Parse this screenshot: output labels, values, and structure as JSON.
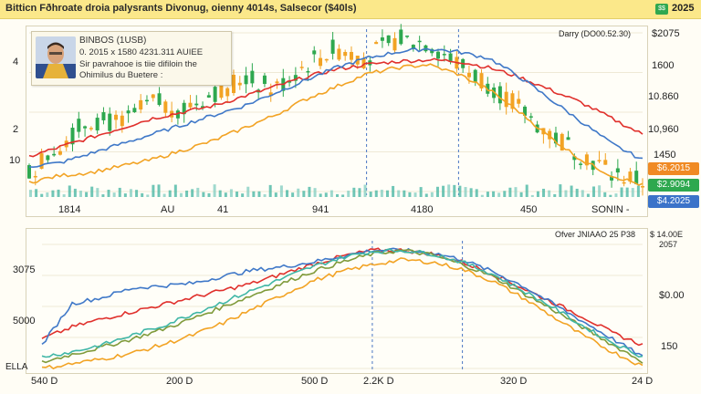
{
  "header": {
    "title": "Bitticn Fðhroate droia palysrants Divonug, oienny 4014s, Salsecor ($40ls)",
    "badge": "$$",
    "year": "2025"
  },
  "annotation": {
    "lines": [
      "BINBOS (1USB)",
      "0. 2015 x 1580 4231.311 AUIEE",
      "Sir pavrahooe is tiie difiloin the",
      "Ohimilus du Buetere :"
    ]
  },
  "top_panel": {
    "left_labels": [
      "4",
      "2",
      "10"
    ],
    "right_labels": [
      "Darry (DO00.52.30)",
      "$2075",
      "1600",
      "10.860",
      "10,960",
      "1450"
    ],
    "x_labels": [
      "1814",
      "AU",
      "41",
      "941",
      "4180",
      "450",
      "SON!N -"
    ],
    "tags": [
      {
        "text": "$6.2015",
        "color": "#f08a24"
      },
      {
        "text": "$2.9094",
        "color": "#2ea84f"
      },
      {
        "text": "$4.2025",
        "color": "#3b73c9"
      }
    ]
  },
  "bottom_panel": {
    "left_labels": [
      "3075",
      "5000",
      "ELLA"
    ],
    "right_labels": [
      "Ofver JNIAAO 25 P38",
      "$ 14.00E",
      "2057",
      "$0.00",
      "150"
    ],
    "x_labels": [
      "540 D",
      "200 D",
      "500 D",
      "2.2K D",
      "320 D",
      "24 D"
    ]
  },
  "colors": {
    "red": "#e0302c",
    "blue": "#3f78c8",
    "green": "#2ea84f",
    "orange": "#f2a324",
    "teal": "#3fb6a6",
    "olive": "#7f9a3a",
    "vline": "#4a77c4"
  },
  "chart_data": [
    {
      "type": "line",
      "description_kind": "candlestick with moving averages and volume",
      "x": [
        0,
        1,
        2,
        3,
        4,
        5,
        6,
        7,
        8,
        9,
        10,
        11,
        12,
        13,
        14,
        15,
        16,
        17,
        18,
        19,
        20
      ],
      "series": [
        {
          "color": "red",
          "values": [
            1.1,
            1.4,
            1.7,
            2.0,
            2.3,
            2.5,
            2.7,
            3.0,
            3.3,
            3.6,
            3.85,
            4.0,
            4.1,
            4.15,
            4.1,
            3.9,
            3.6,
            3.2,
            2.8,
            2.3,
            1.8
          ]
        },
        {
          "color": "blue",
          "values": [
            0.8,
            0.9,
            1.2,
            1.5,
            1.8,
            2.1,
            2.4,
            2.7,
            3.1,
            3.5,
            3.9,
            4.2,
            4.4,
            4.5,
            4.4,
            4.2,
            3.6,
            2.9,
            2.2,
            1.5,
            1.0
          ]
        },
        {
          "color": "orange",
          "values": [
            0.3,
            0.5,
            0.6,
            0.8,
            1.0,
            1.3,
            1.6,
            2.0,
            2.4,
            2.9,
            3.3,
            3.7,
            3.9,
            4.0,
            3.7,
            3.2,
            2.5,
            1.7,
            1.0,
            0.5,
            0.2
          ]
        },
        {
          "color": "green",
          "values": [
            0.6,
            1.5,
            2.3,
            2.1,
            2.8,
            2.6,
            3.1,
            3.6,
            3.2,
            4.0,
            4.5,
            4.2,
            4.8,
            4.7,
            4.0,
            3.4,
            2.6,
            1.8,
            1.2,
            0.6,
            0.3
          ]
        }
      ],
      "markers": [
        11,
        14
      ]
    },
    {
      "type": "line",
      "x": [
        0,
        1,
        2,
        3,
        4,
        5,
        6,
        7,
        8,
        9,
        10,
        11,
        12,
        13,
        14,
        15,
        16,
        17,
        18,
        19,
        20
      ],
      "series": [
        {
          "color": "red",
          "values": [
            0.25,
            0.35,
            0.42,
            0.48,
            0.54,
            0.6,
            0.66,
            0.72,
            0.8,
            0.88,
            0.95,
            1.0,
            1.0,
            0.97,
            0.9,
            0.8,
            0.68,
            0.56,
            0.44,
            0.3,
            0.2
          ]
        },
        {
          "color": "blue",
          "values": [
            0.2,
            0.55,
            0.6,
            0.68,
            0.7,
            0.72,
            0.78,
            0.83,
            0.86,
            0.9,
            0.95,
            1.0,
            1.0,
            0.98,
            0.92,
            0.82,
            0.7,
            0.55,
            0.4,
            0.25,
            0.1
          ]
        },
        {
          "color": "olive",
          "values": [
            0.05,
            0.12,
            0.18,
            0.25,
            0.33,
            0.42,
            0.52,
            0.62,
            0.72,
            0.82,
            0.9,
            0.97,
            1.0,
            0.96,
            0.88,
            0.78,
            0.64,
            0.5,
            0.35,
            0.2,
            0.06
          ]
        },
        {
          "color": "orange",
          "values": [
            0.0,
            0.04,
            0.08,
            0.13,
            0.2,
            0.28,
            0.38,
            0.5,
            0.62,
            0.74,
            0.82,
            0.88,
            0.92,
            0.9,
            0.84,
            0.74,
            0.6,
            0.44,
            0.28,
            0.14,
            0.02
          ]
        },
        {
          "color": "teal",
          "values": [
            0.1,
            0.14,
            0.2,
            0.28,
            0.36,
            0.46,
            0.56,
            0.66,
            0.76,
            0.86,
            0.94,
            0.99,
            1.0,
            0.97,
            0.9,
            0.8,
            0.66,
            0.52,
            0.36,
            0.22,
            0.1
          ]
        }
      ],
      "markers": [
        11,
        14
      ]
    }
  ]
}
